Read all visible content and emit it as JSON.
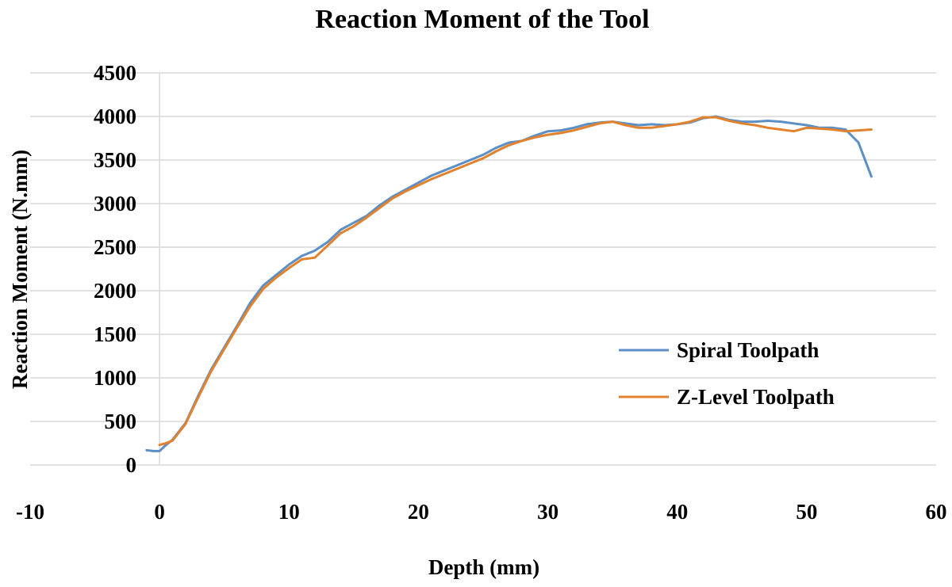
{
  "chart_data": {
    "type": "line",
    "title": "Reaction Moment of the Tool",
    "xlabel": "Depth (mm)",
    "ylabel": "Reaction Moment (N.mm)",
    "xlim": [
      -10,
      60
    ],
    "ylim": [
      0,
      4500
    ],
    "xticks": [
      -10,
      0,
      10,
      20,
      30,
      40,
      50,
      60
    ],
    "yticks": [
      0,
      500,
      1000,
      1500,
      2000,
      2500,
      3000,
      3500,
      4000,
      4500
    ],
    "grid": "horizontal",
    "legend_position": "right",
    "series": [
      {
        "name": "Spiral Toolpath",
        "color": "#5b8fc5",
        "x": [
          -1,
          -0.5,
          0,
          0.5,
          1,
          2,
          3,
          4,
          5,
          6,
          7,
          8,
          9,
          10,
          11,
          12,
          13,
          14,
          15,
          16,
          17,
          18,
          19,
          20,
          21,
          22,
          23,
          24,
          25,
          26,
          27,
          28,
          29,
          30,
          31,
          32,
          33,
          34,
          35,
          36,
          37,
          38,
          39,
          40,
          41,
          42,
          43,
          44,
          45,
          46,
          47,
          48,
          49,
          50,
          51,
          52,
          53,
          54,
          55
        ],
        "y": [
          170,
          160,
          160,
          230,
          290,
          480,
          800,
          1100,
          1350,
          1600,
          1860,
          2060,
          2180,
          2300,
          2400,
          2460,
          2560,
          2700,
          2780,
          2860,
          2980,
          3080,
          3160,
          3240,
          3320,
          3380,
          3440,
          3500,
          3560,
          3640,
          3700,
          3720,
          3780,
          3830,
          3840,
          3870,
          3910,
          3930,
          3940,
          3920,
          3900,
          3910,
          3900,
          3910,
          3930,
          3980,
          4000,
          3960,
          3940,
          3940,
          3950,
          3940,
          3920,
          3900,
          3870,
          3870,
          3850,
          3700,
          3310
        ]
      },
      {
        "name": "Z-Level Toolpath",
        "color": "#e3822c",
        "x": [
          0,
          0.5,
          1,
          2,
          3,
          4,
          5,
          6,
          7,
          8,
          9,
          10,
          11,
          12,
          13,
          14,
          15,
          16,
          17,
          18,
          19,
          20,
          21,
          22,
          23,
          24,
          25,
          26,
          27,
          28,
          29,
          30,
          31,
          32,
          33,
          34,
          35,
          36,
          37,
          38,
          39,
          40,
          41,
          42,
          43,
          44,
          45,
          46,
          47,
          48,
          49,
          50,
          51,
          52,
          53,
          54,
          55
        ],
        "y": [
          230,
          250,
          280,
          470,
          780,
          1080,
          1330,
          1580,
          1820,
          2020,
          2150,
          2260,
          2360,
          2380,
          2520,
          2660,
          2740,
          2840,
          2950,
          3060,
          3140,
          3210,
          3280,
          3340,
          3400,
          3460,
          3520,
          3600,
          3670,
          3720,
          3760,
          3790,
          3810,
          3840,
          3880,
          3920,
          3940,
          3900,
          3870,
          3870,
          3890,
          3910,
          3940,
          3990,
          3990,
          3950,
          3920,
          3900,
          3870,
          3850,
          3830,
          3870,
          3860,
          3850,
          3830,
          3840,
          3850
        ]
      }
    ]
  }
}
